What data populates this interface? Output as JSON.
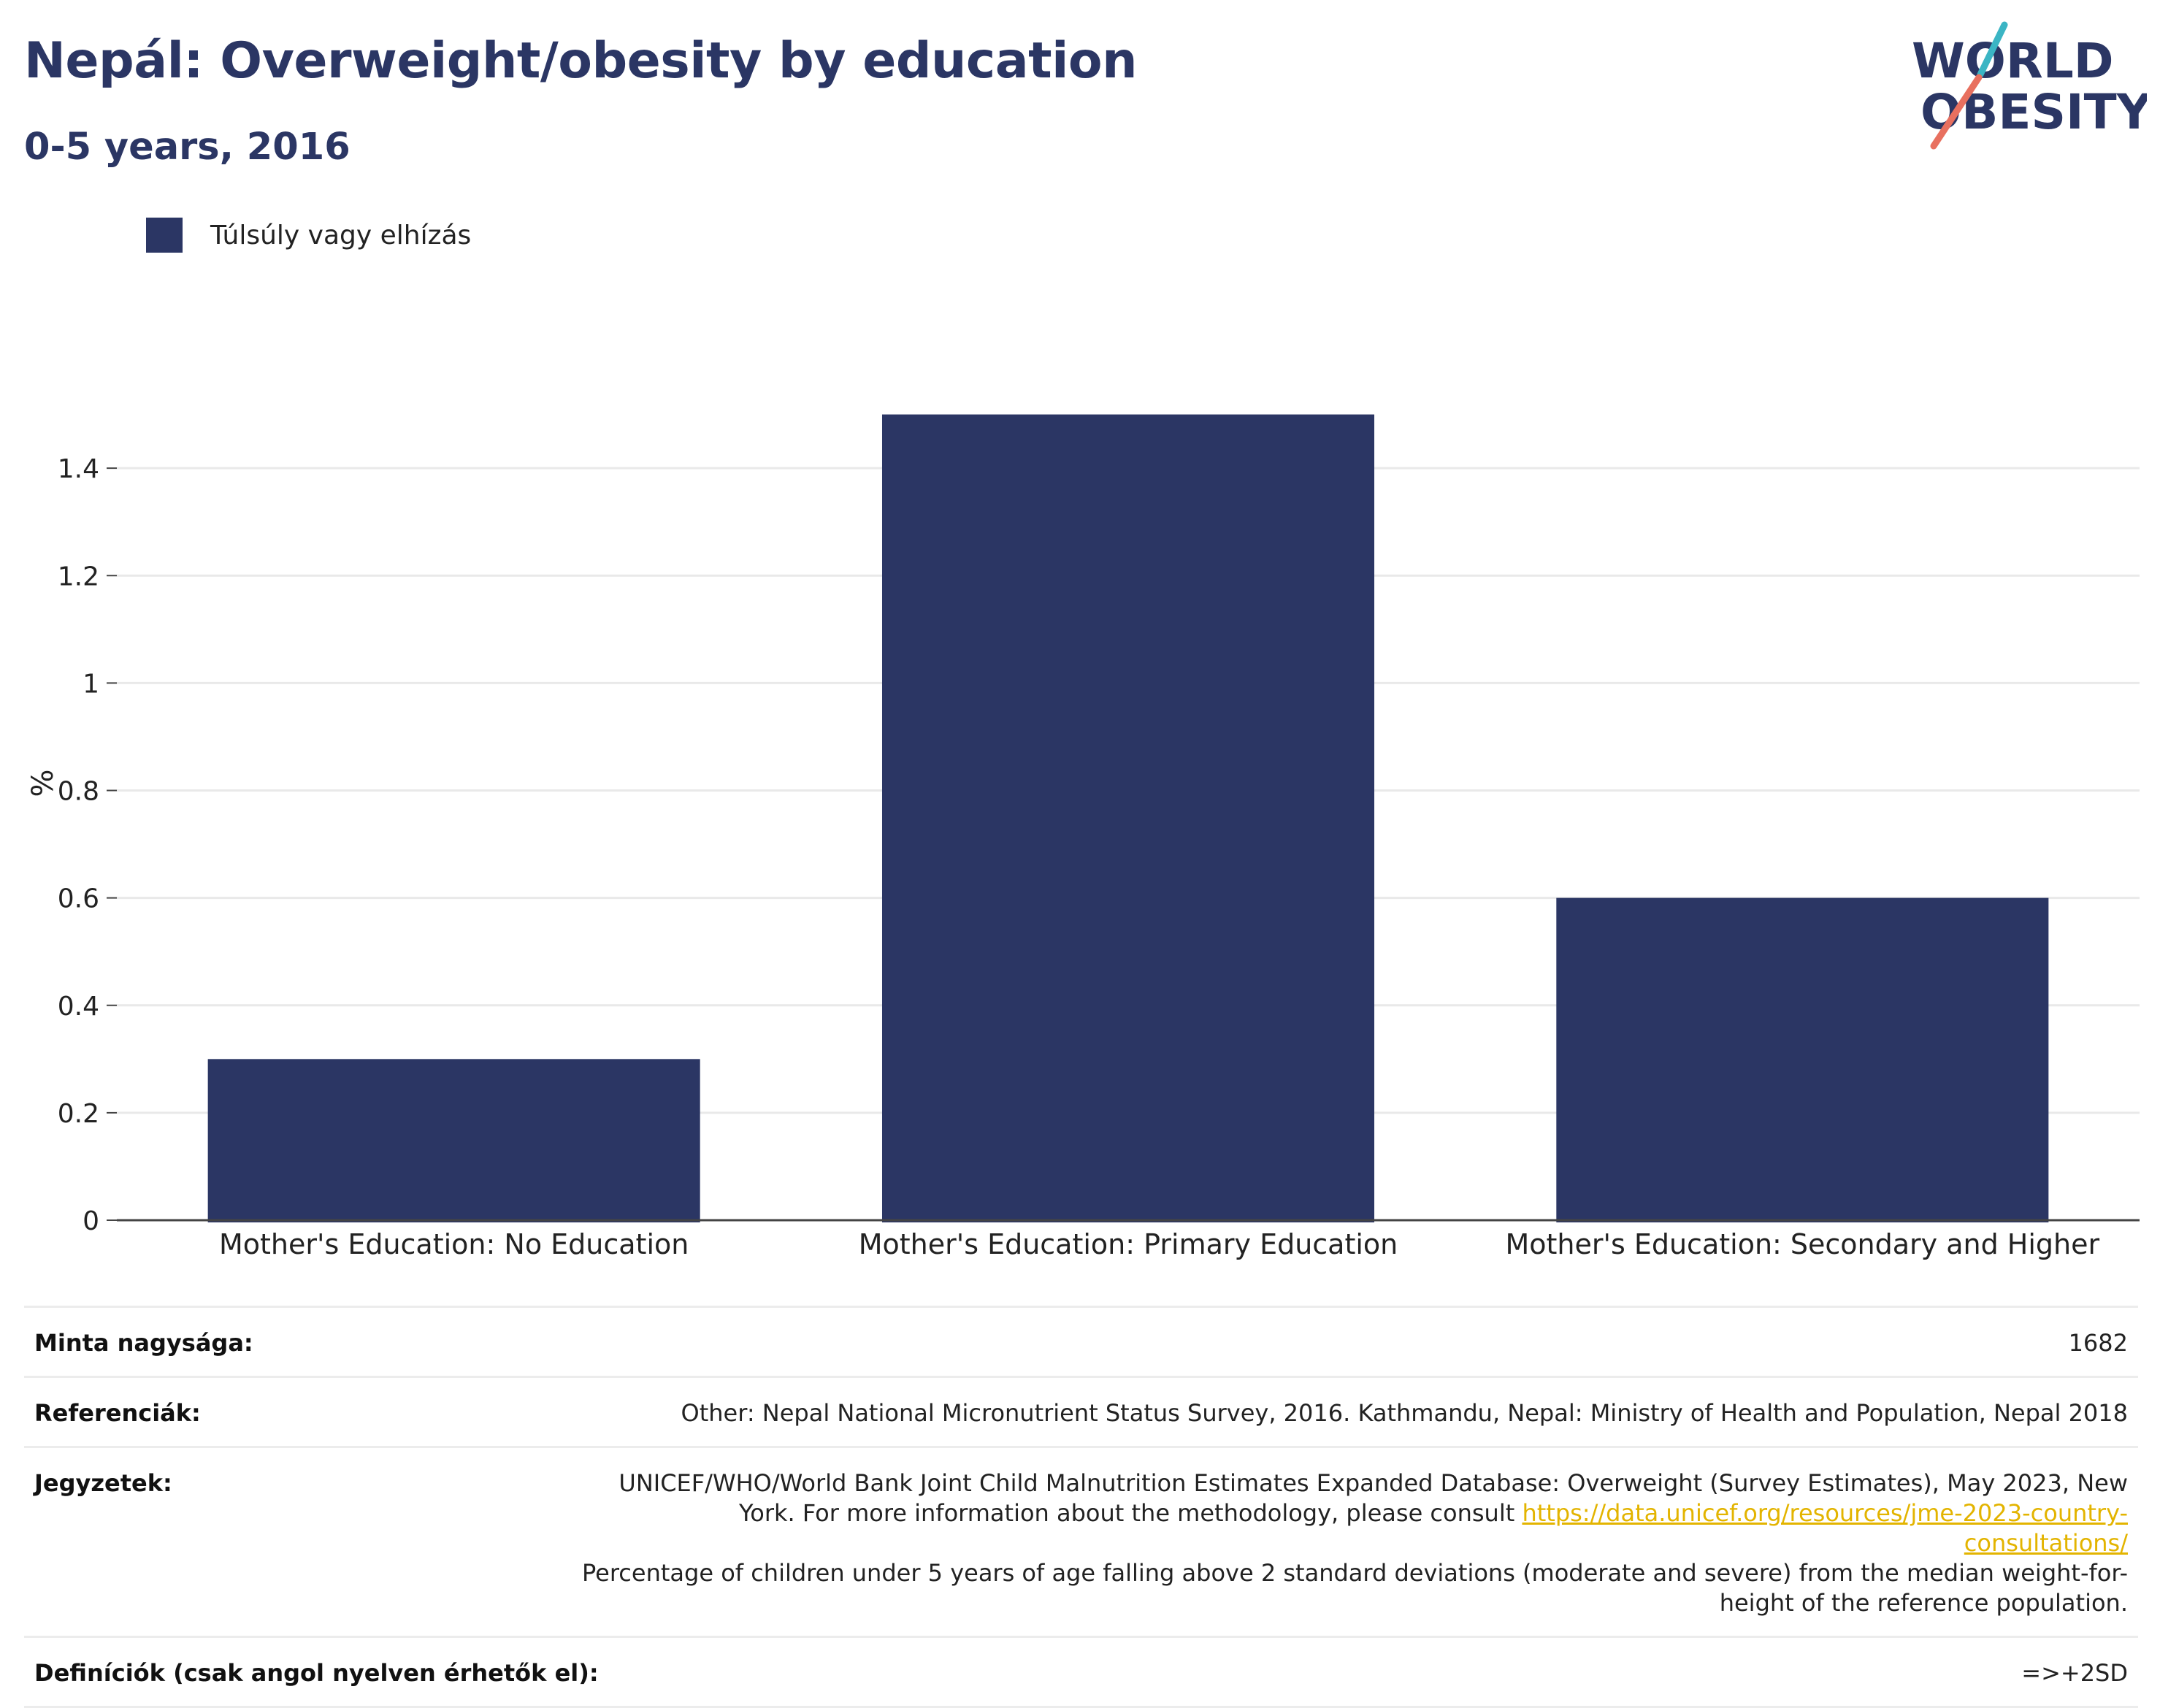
{
  "header": {
    "title": "Nepál: Overweight/obesity by education",
    "subtitle": "0-5 years, 2016"
  },
  "logo": {
    "line1": "WORLD",
    "line2": "OBESITY"
  },
  "colors": {
    "bar": "#2b3664",
    "text_dark": "#2b3664",
    "logo_teal": "#3bb5c4",
    "logo_coral": "#e8705f",
    "link": "#e3b400"
  },
  "chart_data": {
    "type": "bar",
    "categories": [
      "Mother's Education: No Education",
      "Mother's Education: Primary Education",
      "Mother's Education: Secondary and Higher"
    ],
    "series": [
      {
        "name": "Túlsúly vagy elhízás",
        "values": [
          0.3,
          1.5,
          0.6
        ]
      }
    ],
    "ylabel": "%",
    "xlabel": "",
    "ylim": [
      0,
      1.6
    ],
    "yticks": [
      0,
      0.2,
      0.4,
      0.6,
      0.8,
      1,
      1.2,
      1.4
    ],
    "ytick_labels": [
      "0",
      "0.2",
      "0.4",
      "0.6",
      "0.8",
      "1",
      "1.2",
      "1.4"
    ],
    "grid": true,
    "legend_position": "top-left"
  },
  "footer": {
    "sample_size_label": "Minta nagysága:",
    "sample_size_value": "1682",
    "references_label": "Referenciák:",
    "references_value": "Other: Nepal National Micronutrient Status Survey, 2016. Kathmandu, Nepal: Ministry of Health and Population, Nepal 2018",
    "notes_label": "Jegyzetek:",
    "notes_text1": "UNICEF/WHO/World Bank Joint Child Malnutrition Estimates Expanded Database: Overweight (Survey Estimates), May 2023, New York. For more information about the methodology, please consult ",
    "notes_link": "https://data.unicef.org/resources/jme-2023-country-consultations/",
    "notes_text2": "Percentage of children under 5 years of age falling above 2 standard deviations (moderate and severe) from the median weight-for-height of the reference population.",
    "definitions_label": "Definíciók (csak angol nyelven érhetők el):",
    "definitions_value": "=>+2SD"
  }
}
